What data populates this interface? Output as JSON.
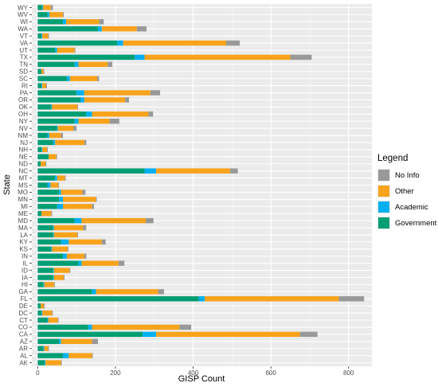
{
  "chart_data": {
    "type": "bar",
    "orientation": "horizontal",
    "stacked": true,
    "xlabel": "GISP Count",
    "ylabel": "State",
    "xlim": [
      -15,
      860
    ],
    "xticks": [
      0,
      200,
      400,
      600,
      800
    ],
    "grid": true,
    "legend_position": "right",
    "legend_title": "Legend",
    "categories": [
      "AK",
      "AL",
      "AR",
      "AZ",
      "CA",
      "CO",
      "CT",
      "DC",
      "DE",
      "FL",
      "GA",
      "HI",
      "IA",
      "ID",
      "IL",
      "IN",
      "KS",
      "KY",
      "LA",
      "MA",
      "MD",
      "ME",
      "MI",
      "MN",
      "MO",
      "MS",
      "MT",
      "NC",
      "ND",
      "NE",
      "NH",
      "NJ",
      "NM",
      "NV",
      "NY",
      "OH",
      "OK",
      "OR",
      "PA",
      "RI",
      "SC",
      "SD",
      "TN",
      "TX",
      "UT",
      "VA",
      "VT",
      "WA",
      "WI",
      "WV",
      "WY"
    ],
    "series": [
      {
        "name": "Government",
        "color": "#009e73",
        "values": [
          18,
          65,
          15,
          55,
          270,
          130,
          25,
          10,
          8,
          415,
          140,
          15,
          40,
          40,
          105,
          65,
          35,
          60,
          40,
          40,
          95,
          10,
          50,
          55,
          55,
          25,
          45,
          275,
          8,
          28,
          10,
          40,
          25,
          50,
          95,
          125,
          35,
          110,
          100,
          10,
          75,
          10,
          95,
          250,
          45,
          205,
          10,
          155,
          65,
          25,
          12
        ]
      },
      {
        "name": "Academic",
        "color": "#00b0f0",
        "values": [
          2,
          15,
          2,
          5,
          35,
          10,
          2,
          2,
          0,
          15,
          10,
          2,
          2,
          2,
          8,
          10,
          2,
          20,
          2,
          2,
          18,
          0,
          15,
          10,
          5,
          8,
          5,
          30,
          0,
          0,
          2,
          5,
          5,
          2,
          10,
          15,
          2,
          10,
          20,
          2,
          8,
          0,
          10,
          25,
          5,
          15,
          2,
          10,
          8,
          5,
          2
        ]
      },
      {
        "name": "Other",
        "color": "#f8a31b",
        "values": [
          40,
          60,
          10,
          80,
          370,
          225,
          25,
          25,
          8,
          345,
          160,
          25,
          25,
          40,
          95,
          45,
          40,
          85,
          60,
          75,
          165,
          25,
          75,
          85,
          55,
          20,
          20,
          190,
          12,
          20,
          12,
          75,
          30,
          40,
          80,
          145,
          65,
          105,
          170,
          10,
          70,
          5,
          75,
          375,
          45,
          265,
          15,
          90,
          85,
          35,
          20
        ]
      },
      {
        "name": "No Info",
        "color": "#999999",
        "values": [
          2,
          2,
          2,
          15,
          45,
          30,
          2,
          2,
          2,
          65,
          15,
          2,
          2,
          2,
          15,
          5,
          2,
          10,
          2,
          8,
          20,
          2,
          5,
          2,
          8,
          2,
          2,
          20,
          2,
          2,
          2,
          5,
          5,
          8,
          25,
          12,
          2,
          10,
          25,
          2,
          5,
          2,
          12,
          55,
          2,
          35,
          2,
          25,
          12,
          2,
          5
        ]
      }
    ]
  }
}
